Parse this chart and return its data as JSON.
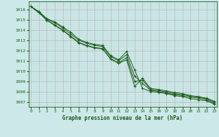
{
  "title": "Graphe pression niveau de la mer (hPa)",
  "bg_color": "#cce8e8",
  "line_color": "#1a5c1a",
  "grid_color": "#b0b0b0",
  "xmin": 0,
  "xmax": 23,
  "ymin": 1006.5,
  "ymax": 1016.8,
  "yticks": [
    1007,
    1008,
    1009,
    1010,
    1011,
    1012,
    1013,
    1014,
    1015,
    1016
  ],
  "series": [
    [
      1016.3,
      1015.8,
      1015.1,
      1014.8,
      1014.3,
      1013.8,
      1013.1,
      1012.8,
      1012.6,
      1012.5,
      1011.5,
      1011.1,
      1011.9,
      1010.1,
      1008.3,
      1008.0,
      1007.9,
      1007.8,
      1007.6,
      1007.5,
      1007.3,
      1007.2,
      1007.1,
      1006.75
    ],
    [
      1016.3,
      1015.8,
      1015.1,
      1014.7,
      1014.2,
      1013.6,
      1013.0,
      1012.7,
      1012.5,
      1012.4,
      1011.4,
      1011.0,
      1011.6,
      1009.5,
      1008.8,
      1008.1,
      1008.0,
      1007.85,
      1007.7,
      1007.6,
      1007.45,
      1007.35,
      1007.2,
      1006.85
    ],
    [
      1016.3,
      1015.7,
      1015.0,
      1014.5,
      1014.0,
      1013.4,
      1012.8,
      1012.5,
      1012.3,
      1012.2,
      1011.2,
      1010.8,
      1011.3,
      1009.0,
      1009.1,
      1008.2,
      1008.1,
      1007.95,
      1007.8,
      1007.7,
      1007.55,
      1007.45,
      1007.3,
      1006.95
    ],
    [
      1016.3,
      1015.7,
      1014.95,
      1014.45,
      1013.95,
      1013.35,
      1012.75,
      1012.45,
      1012.25,
      1012.15,
      1011.15,
      1010.75,
      1011.1,
      1008.5,
      1009.3,
      1008.3,
      1008.2,
      1008.05,
      1007.9,
      1007.8,
      1007.6,
      1007.5,
      1007.35,
      1007.05
    ]
  ]
}
